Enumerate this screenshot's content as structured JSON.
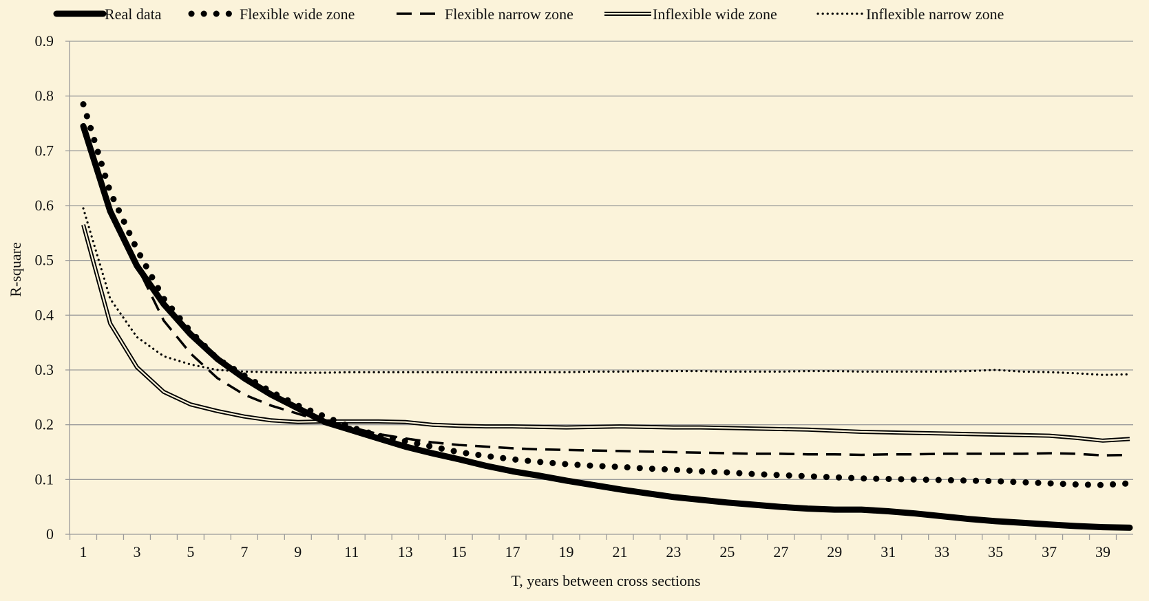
{
  "chart_data": {
    "type": "line",
    "title": "",
    "xlabel": "T, years between cross sections",
    "ylabel": "R-square",
    "xlim": [
      1,
      40
    ],
    "ylim": [
      0,
      0.9
    ],
    "yticks": [
      0,
      0.1,
      0.2,
      0.3,
      0.4,
      0.5,
      0.6,
      0.7,
      0.8,
      0.9
    ],
    "ytick_labels": [
      "0",
      "0.1",
      "0.2",
      "0.3",
      "0.4",
      "0.5",
      "0.6",
      "0.7",
      "0.8",
      "0.9"
    ],
    "xtick_labels": [
      "1",
      "3",
      "5",
      "7",
      "9",
      "11",
      "13",
      "15",
      "17",
      "19",
      "21",
      "23",
      "25",
      "27",
      "29",
      "31",
      "33",
      "35",
      "37",
      "39"
    ],
    "grid": "horizontal",
    "legend_position": "top",
    "x": [
      1,
      2,
      3,
      4,
      5,
      6,
      7,
      8,
      9,
      10,
      11,
      12,
      13,
      14,
      15,
      16,
      17,
      18,
      19,
      20,
      21,
      22,
      23,
      24,
      25,
      26,
      27,
      28,
      29,
      30,
      31,
      32,
      33,
      34,
      35,
      36,
      37,
      38,
      39,
      40
    ],
    "series": [
      {
        "name": "Real data",
        "style": "thick-solid",
        "values": [
          0.745,
          0.59,
          0.49,
          0.42,
          0.365,
          0.32,
          0.285,
          0.255,
          0.23,
          0.205,
          0.19,
          0.175,
          0.16,
          0.148,
          0.137,
          0.125,
          0.115,
          0.107,
          0.098,
          0.09,
          0.082,
          0.075,
          0.068,
          0.063,
          0.058,
          0.054,
          0.05,
          0.047,
          0.045,
          0.045,
          0.042,
          0.038,
          0.033,
          0.028,
          0.024,
          0.021,
          0.018,
          0.015,
          0.013,
          0.012
        ]
      },
      {
        "name": "Flexible wide zone",
        "style": "round-dots",
        "values": [
          0.785,
          0.625,
          0.52,
          0.43,
          0.37,
          0.32,
          0.29,
          0.26,
          0.235,
          0.215,
          0.195,
          0.18,
          0.17,
          0.16,
          0.15,
          0.143,
          0.137,
          0.132,
          0.128,
          0.125,
          0.123,
          0.12,
          0.118,
          0.115,
          0.113,
          0.11,
          0.108,
          0.106,
          0.104,
          0.102,
          0.101,
          0.1,
          0.099,
          0.098,
          0.097,
          0.095,
          0.093,
          0.091,
          0.09,
          0.093
        ]
      },
      {
        "name": "Flexible narrow zone",
        "style": "dashed",
        "values": [
          0.75,
          0.595,
          0.49,
          0.39,
          0.33,
          0.285,
          0.255,
          0.235,
          0.22,
          0.205,
          0.195,
          0.183,
          0.175,
          0.168,
          0.163,
          0.16,
          0.157,
          0.155,
          0.154,
          0.153,
          0.152,
          0.151,
          0.15,
          0.149,
          0.148,
          0.147,
          0.147,
          0.146,
          0.146,
          0.145,
          0.146,
          0.146,
          0.147,
          0.147,
          0.147,
          0.147,
          0.148,
          0.147,
          0.144,
          0.145
        ]
      },
      {
        "name": "Inflexible wide zone",
        "style": "double-line",
        "values": [
          0.565,
          0.385,
          0.305,
          0.26,
          0.237,
          0.225,
          0.215,
          0.208,
          0.205,
          0.206,
          0.206,
          0.206,
          0.205,
          0.2,
          0.198,
          0.197,
          0.197,
          0.196,
          0.195,
          0.196,
          0.197,
          0.196,
          0.195,
          0.195,
          0.194,
          0.193,
          0.192,
          0.191,
          0.189,
          0.187,
          0.186,
          0.185,
          0.184,
          0.183,
          0.182,
          0.181,
          0.18,
          0.176,
          0.171,
          0.174
        ]
      },
      {
        "name": "Inflexible narrow zone",
        "style": "small-dots",
        "values": [
          0.595,
          0.43,
          0.36,
          0.325,
          0.31,
          0.3,
          0.297,
          0.296,
          0.295,
          0.295,
          0.296,
          0.296,
          0.296,
          0.296,
          0.296,
          0.296,
          0.296,
          0.296,
          0.296,
          0.297,
          0.297,
          0.298,
          0.298,
          0.298,
          0.297,
          0.297,
          0.297,
          0.298,
          0.298,
          0.297,
          0.297,
          0.297,
          0.297,
          0.298,
          0.3,
          0.297,
          0.296,
          0.294,
          0.291,
          0.292
        ]
      }
    ]
  },
  "colors": {
    "background": "#fbf3da",
    "gridline": "#9a9a9a",
    "series": "#000000",
    "text": "#111111"
  }
}
